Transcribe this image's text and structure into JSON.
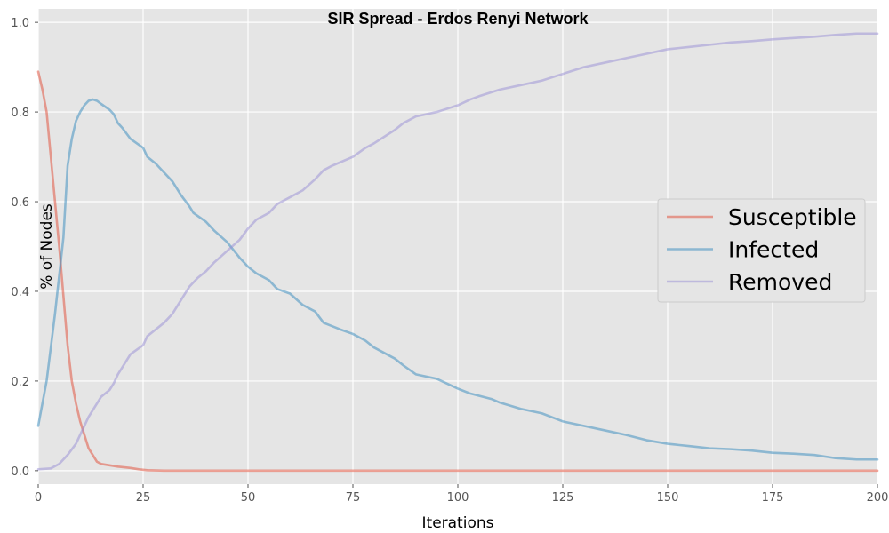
{
  "chart_data": {
    "type": "line",
    "title": "SIR Spread - Erdos Renyi Network",
    "xlabel": "Iterations",
    "ylabel": "% of Nodes",
    "xlim": [
      0,
      200
    ],
    "ylim": [
      -0.03,
      1.03
    ],
    "xticks": [
      0,
      25,
      50,
      75,
      100,
      125,
      150,
      175,
      200
    ],
    "yticks": [
      0.0,
      0.2,
      0.4,
      0.6,
      0.8,
      1.0
    ],
    "xtick_labels": [
      "0",
      "25",
      "50",
      "75",
      "100",
      "125",
      "150",
      "175",
      "200"
    ],
    "ytick_labels": [
      "0.0",
      "0.2",
      "0.4",
      "0.6",
      "0.8",
      "1.0"
    ],
    "grid": true,
    "legend_position": "right",
    "style": "ggplot",
    "series": [
      {
        "name": "Susceptible",
        "color": "#E24A33",
        "points": [
          [
            0,
            0.89
          ],
          [
            1,
            0.85
          ],
          [
            2,
            0.8
          ],
          [
            3,
            0.7
          ],
          [
            4,
            0.6
          ],
          [
            5,
            0.5
          ],
          [
            6,
            0.39
          ],
          [
            7,
            0.28
          ],
          [
            8,
            0.2
          ],
          [
            9,
            0.15
          ],
          [
            10,
            0.11
          ],
          [
            11,
            0.08
          ],
          [
            12,
            0.05
          ],
          [
            13,
            0.035
          ],
          [
            14,
            0.02
          ],
          [
            15,
            0.015
          ],
          [
            17,
            0.012
          ],
          [
            19,
            0.009
          ],
          [
            22,
            0.006
          ],
          [
            24,
            0.003
          ],
          [
            26,
            0.001
          ],
          [
            30,
            0.0
          ],
          [
            200,
            0.0
          ]
        ]
      },
      {
        "name": "Infected",
        "color": "#348ABD",
        "points": [
          [
            0,
            0.1
          ],
          [
            2,
            0.2
          ],
          [
            4,
            0.35
          ],
          [
            6,
            0.52
          ],
          [
            7,
            0.68
          ],
          [
            8,
            0.74
          ],
          [
            9,
            0.78
          ],
          [
            10,
            0.8
          ],
          [
            11,
            0.815
          ],
          [
            12,
            0.825
          ],
          [
            13,
            0.828
          ],
          [
            14,
            0.825
          ],
          [
            15,
            0.818
          ],
          [
            17,
            0.805
          ],
          [
            18,
            0.795
          ],
          [
            19,
            0.775
          ],
          [
            20,
            0.765
          ],
          [
            22,
            0.74
          ],
          [
            25,
            0.72
          ],
          [
            26,
            0.7
          ],
          [
            28,
            0.685
          ],
          [
            30,
            0.665
          ],
          [
            32,
            0.645
          ],
          [
            34,
            0.615
          ],
          [
            36,
            0.59
          ],
          [
            37,
            0.575
          ],
          [
            40,
            0.555
          ],
          [
            42,
            0.535
          ],
          [
            45,
            0.51
          ],
          [
            48,
            0.475
          ],
          [
            50,
            0.455
          ],
          [
            52,
            0.44
          ],
          [
            55,
            0.425
          ],
          [
            57,
            0.405
          ],
          [
            60,
            0.395
          ],
          [
            63,
            0.37
          ],
          [
            66,
            0.355
          ],
          [
            68,
            0.33
          ],
          [
            72,
            0.315
          ],
          [
            75,
            0.305
          ],
          [
            78,
            0.29
          ],
          [
            80,
            0.275
          ],
          [
            85,
            0.25
          ],
          [
            87,
            0.235
          ],
          [
            90,
            0.215
          ],
          [
            95,
            0.205
          ],
          [
            100,
            0.183
          ],
          [
            103,
            0.172
          ],
          [
            108,
            0.16
          ],
          [
            110,
            0.152
          ],
          [
            115,
            0.138
          ],
          [
            120,
            0.128
          ],
          [
            125,
            0.11
          ],
          [
            130,
            0.1
          ],
          [
            135,
            0.09
          ],
          [
            140,
            0.08
          ],
          [
            145,
            0.068
          ],
          [
            150,
            0.06
          ],
          [
            155,
            0.055
          ],
          [
            160,
            0.05
          ],
          [
            165,
            0.048
          ],
          [
            170,
            0.045
          ],
          [
            175,
            0.04
          ],
          [
            180,
            0.038
          ],
          [
            185,
            0.035
          ],
          [
            190,
            0.028
          ],
          [
            195,
            0.025
          ],
          [
            200,
            0.025
          ]
        ]
      },
      {
        "name": "Removed",
        "color": "#988ED5",
        "points": [
          [
            0,
            0.003
          ],
          [
            3,
            0.005
          ],
          [
            5,
            0.015
          ],
          [
            7,
            0.035
          ],
          [
            9,
            0.06
          ],
          [
            10,
            0.08
          ],
          [
            12,
            0.12
          ],
          [
            14,
            0.15
          ],
          [
            15,
            0.165
          ],
          [
            17,
            0.18
          ],
          [
            18,
            0.195
          ],
          [
            19,
            0.215
          ],
          [
            20,
            0.23
          ],
          [
            22,
            0.26
          ],
          [
            25,
            0.28
          ],
          [
            26,
            0.3
          ],
          [
            28,
            0.315
          ],
          [
            30,
            0.33
          ],
          [
            32,
            0.35
          ],
          [
            34,
            0.38
          ],
          [
            36,
            0.41
          ],
          [
            38,
            0.43
          ],
          [
            40,
            0.445
          ],
          [
            42,
            0.465
          ],
          [
            45,
            0.49
          ],
          [
            48,
            0.515
          ],
          [
            50,
            0.54
          ],
          [
            52,
            0.56
          ],
          [
            55,
            0.575
          ],
          [
            57,
            0.595
          ],
          [
            60,
            0.61
          ],
          [
            63,
            0.625
          ],
          [
            66,
            0.65
          ],
          [
            68,
            0.67
          ],
          [
            70,
            0.68
          ],
          [
            75,
            0.7
          ],
          [
            78,
            0.72
          ],
          [
            80,
            0.73
          ],
          [
            85,
            0.76
          ],
          [
            87,
            0.775
          ],
          [
            90,
            0.79
          ],
          [
            95,
            0.8
          ],
          [
            100,
            0.815
          ],
          [
            103,
            0.828
          ],
          [
            105,
            0.835
          ],
          [
            110,
            0.85
          ],
          [
            115,
            0.86
          ],
          [
            120,
            0.87
          ],
          [
            125,
            0.885
          ],
          [
            130,
            0.9
          ],
          [
            135,
            0.91
          ],
          [
            140,
            0.92
          ],
          [
            145,
            0.93
          ],
          [
            150,
            0.94
          ],
          [
            155,
            0.945
          ],
          [
            160,
            0.95
          ],
          [
            165,
            0.955
          ],
          [
            170,
            0.958
          ],
          [
            175,
            0.962
          ],
          [
            180,
            0.965
          ],
          [
            185,
            0.968
          ],
          [
            190,
            0.972
          ],
          [
            195,
            0.975
          ],
          [
            200,
            0.975
          ]
        ]
      }
    ]
  }
}
